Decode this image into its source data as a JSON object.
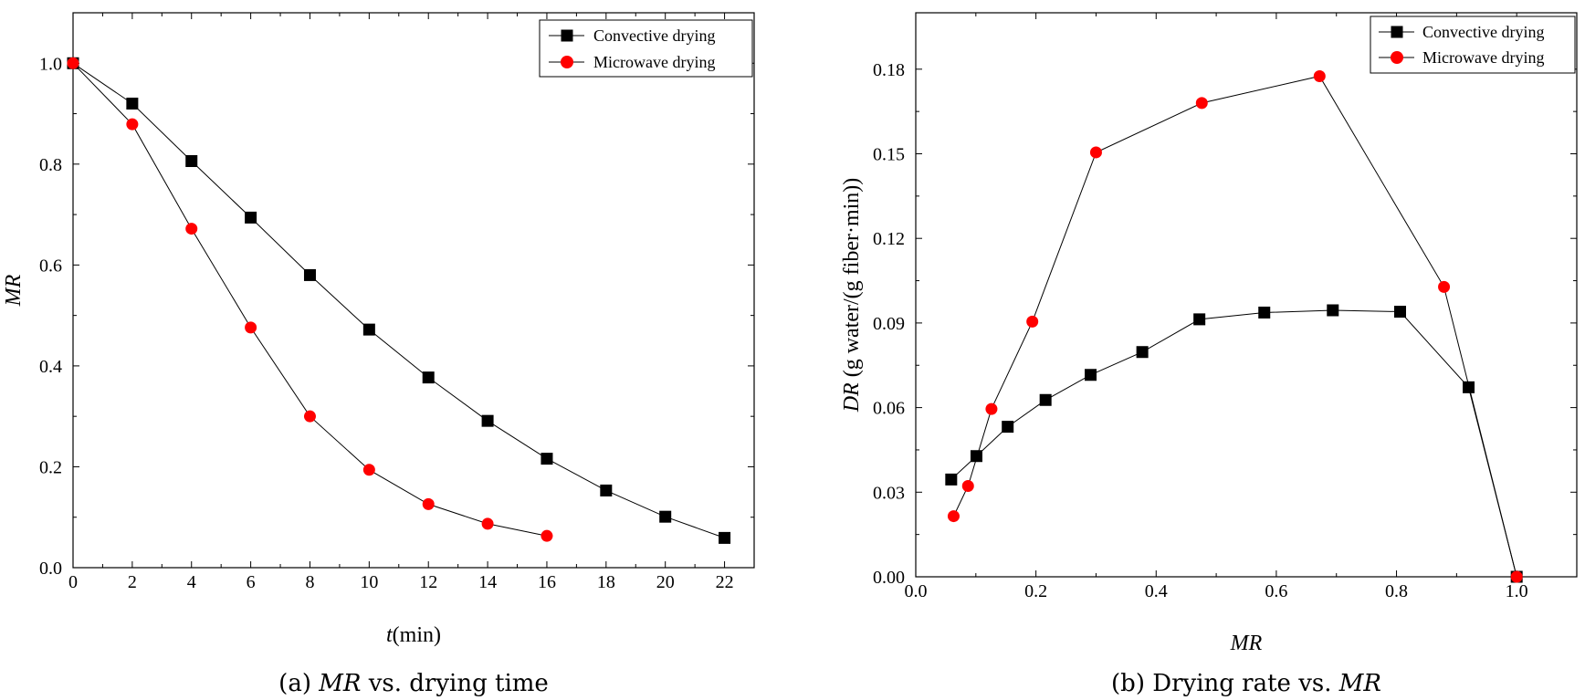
{
  "chart_data": [
    {
      "type": "line",
      "panel": "a",
      "caption_prefix": "(a)",
      "caption_italic": "MR",
      "caption_rest": "vs. drying time",
      "xlabel_italic": "t",
      "xlabel_rest": "(min)",
      "ylabel": "MR",
      "xlim": [
        0,
        23
      ],
      "ylim": [
        0,
        1.1
      ],
      "xticks": [
        0,
        2,
        4,
        6,
        8,
        10,
        12,
        14,
        16,
        18,
        20,
        22
      ],
      "yticks": [
        0.0,
        0.2,
        0.4,
        0.6,
        0.8,
        1.0
      ],
      "ytick_labels": [
        "0.0",
        "0.2",
        "0.4",
        "0.6",
        "0.8",
        "1.0"
      ],
      "legend_position": "top-right",
      "series": [
        {
          "name": "Convective drying",
          "marker": "square",
          "color": "#000000",
          "x": [
            0,
            2,
            4,
            6,
            8,
            10,
            12,
            14,
            16,
            18,
            20,
            22
          ],
          "y": [
            1.0,
            0.92,
            0.806,
            0.694,
            0.58,
            0.472,
            0.377,
            0.291,
            0.216,
            0.153,
            0.101,
            0.059
          ]
        },
        {
          "name": "Microwave drying",
          "marker": "circle",
          "color": "#ff0000",
          "x": [
            0,
            2,
            4,
            6,
            8,
            10,
            12,
            14,
            16
          ],
          "y": [
            1.0,
            0.879,
            0.672,
            0.476,
            0.3,
            0.194,
            0.126,
            0.087,
            0.063
          ]
        }
      ]
    },
    {
      "type": "line",
      "panel": "b",
      "caption_prefix": "(b) Drying rate vs.",
      "caption_italic": "MR",
      "caption_rest": "",
      "xlabel": "MR",
      "ylabel_italic": "DR",
      "ylabel_rest": " (g water/(g fiber·min))",
      "xlim": [
        0,
        1.1
      ],
      "ylim": [
        0,
        0.2
      ],
      "xticks": [
        0.0,
        0.2,
        0.4,
        0.6,
        0.8,
        1.0
      ],
      "xtick_labels": [
        "0.0",
        "0.2",
        "0.4",
        "0.6",
        "0.8",
        "1.0"
      ],
      "yticks": [
        0.0,
        0.03,
        0.06,
        0.09,
        0.12,
        0.15,
        0.18
      ],
      "ytick_labels": [
        "0.00",
        "0.03",
        "0.06",
        "0.09",
        "0.12",
        "0.15",
        "0.18"
      ],
      "legend_position": "top-right",
      "series": [
        {
          "name": "Convective drying",
          "marker": "square",
          "color": "#000000",
          "x": [
            0.059,
            0.101,
            0.153,
            0.216,
            0.291,
            0.377,
            0.472,
            0.58,
            0.694,
            0.806,
            0.92,
            1.0
          ],
          "y": [
            0.0345,
            0.0428,
            0.0532,
            0.0627,
            0.0716,
            0.0797,
            0.0913,
            0.0937,
            0.0945,
            0.094,
            0.0672,
            0.0
          ]
        },
        {
          "name": "Microwave drying",
          "marker": "circle",
          "color": "#ff0000",
          "x": [
            0.063,
            0.087,
            0.126,
            0.194,
            0.3,
            0.476,
            0.672,
            0.879,
            1.0
          ],
          "y": [
            0.0215,
            0.0322,
            0.0595,
            0.0905,
            0.1505,
            0.168,
            0.1775,
            0.1028,
            0.0
          ]
        }
      ]
    }
  ]
}
